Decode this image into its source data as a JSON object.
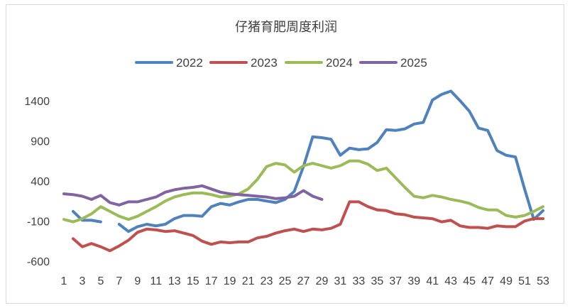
{
  "chart_data": {
    "type": "line",
    "title": "仔猪育肥周度利润",
    "xlabel": "",
    "ylabel": "",
    "ylim": [
      -600,
      1400
    ],
    "yticks": [
      1400,
      900,
      400,
      -100,
      -600
    ],
    "xlim": [
      1,
      53
    ],
    "xticks": [
      1,
      3,
      5,
      7,
      9,
      11,
      13,
      15,
      17,
      19,
      21,
      23,
      25,
      27,
      29,
      31,
      33,
      35,
      37,
      39,
      41,
      43,
      45,
      47,
      49,
      51,
      53
    ],
    "grid": false,
    "legend_position": "top",
    "series": [
      {
        "name": "2022",
        "color": "#4f81bd",
        "x": [
          2,
          3,
          4,
          5,
          7,
          8,
          9,
          10,
          11,
          12,
          13,
          14,
          15,
          16,
          17,
          18,
          19,
          20,
          21,
          22,
          23,
          24,
          25,
          26,
          27,
          28,
          29,
          30,
          31,
          32,
          33,
          34,
          35,
          36,
          37,
          38,
          39,
          40,
          41,
          42,
          43,
          44,
          45,
          46,
          47,
          48,
          49,
          50,
          51,
          52,
          53
        ],
        "values": [
          20,
          -90,
          -90,
          -110,
          -140,
          -230,
          -170,
          -140,
          -160,
          -140,
          -70,
          -30,
          -30,
          -40,
          80,
          120,
          100,
          140,
          170,
          170,
          150,
          130,
          170,
          270,
          580,
          950,
          940,
          920,
          720,
          810,
          790,
          800,
          880,
          1040,
          1030,
          1050,
          1110,
          1130,
          1410,
          1480,
          1520,
          1400,
          1270,
          1060,
          1030,
          780,
          720,
          700,
          300,
          -80,
          30
        ]
      },
      {
        "name": "2023",
        "color": "#c0504d",
        "x": [
          2,
          3,
          4,
          5,
          6,
          7,
          8,
          9,
          10,
          11,
          12,
          13,
          14,
          15,
          16,
          17,
          18,
          19,
          20,
          21,
          22,
          23,
          24,
          25,
          26,
          27,
          28,
          29,
          30,
          31,
          32,
          33,
          34,
          35,
          36,
          37,
          38,
          39,
          40,
          41,
          42,
          43,
          44,
          45,
          46,
          47,
          48,
          49,
          50,
          51,
          52,
          53
        ],
        "values": [
          -320,
          -420,
          -380,
          -420,
          -470,
          -410,
          -340,
          -240,
          -200,
          -210,
          -230,
          -220,
          -250,
          -280,
          -350,
          -390,
          -360,
          -370,
          -360,
          -360,
          -310,
          -290,
          -250,
          -220,
          -200,
          -230,
          -200,
          -210,
          -190,
          -140,
          140,
          140,
          80,
          40,
          30,
          -10,
          -20,
          -50,
          -60,
          -70,
          -110,
          -90,
          -160,
          -180,
          -180,
          -190,
          -160,
          -170,
          -170,
          -100,
          -70,
          -70
        ]
      },
      {
        "name": "2024",
        "color": "#9bbb59",
        "x": [
          1,
          2,
          3,
          4,
          5,
          6,
          7,
          8,
          9,
          10,
          11,
          12,
          13,
          14,
          15,
          16,
          17,
          18,
          19,
          20,
          21,
          22,
          23,
          24,
          25,
          26,
          27,
          28,
          29,
          30,
          31,
          32,
          33,
          34,
          35,
          36,
          37,
          38,
          39,
          40,
          41,
          42,
          43,
          44,
          45,
          46,
          47,
          48,
          49,
          50,
          51,
          52,
          53
        ],
        "values": [
          -80,
          -110,
          -70,
          -10,
          80,
          20,
          -40,
          -80,
          -40,
          20,
          80,
          150,
          200,
          230,
          250,
          250,
          230,
          200,
          210,
          240,
          300,
          420,
          580,
          620,
          600,
          510,
          590,
          620,
          590,
          560,
          590,
          650,
          650,
          610,
          530,
          560,
          440,
          320,
          210,
          190,
          220,
          200,
          170,
          150,
          120,
          70,
          40,
          40,
          -30,
          -50,
          -30,
          20,
          80
        ]
      },
      {
        "name": "2025",
        "color": "#8064a2",
        "x": [
          1,
          2,
          3,
          4,
          5,
          6,
          7,
          8,
          9,
          10,
          11,
          12,
          13,
          14,
          15,
          16,
          17,
          18,
          19,
          20,
          21,
          22,
          23,
          24,
          25,
          26,
          27,
          28,
          29
        ],
        "values": [
          240,
          230,
          210,
          170,
          220,
          130,
          100,
          140,
          140,
          170,
          200,
          260,
          290,
          310,
          320,
          340,
          300,
          260,
          240,
          230,
          220,
          210,
          200,
          180,
          190,
          210,
          280,
          210,
          170
        ]
      }
    ]
  }
}
